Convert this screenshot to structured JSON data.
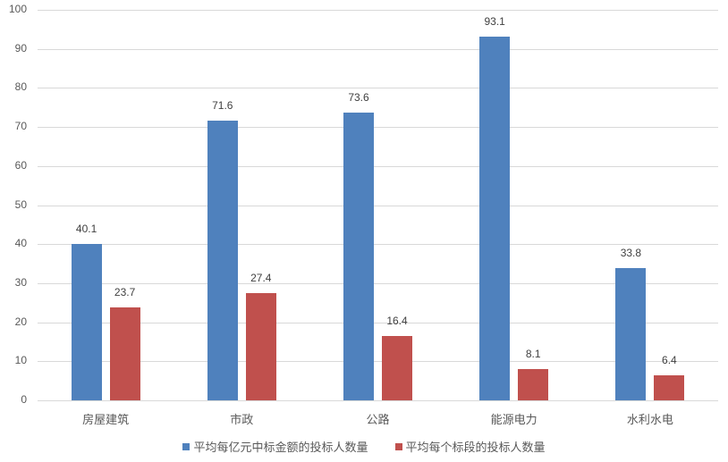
{
  "chart_data": {
    "type": "bar",
    "title": "",
    "xlabel": "",
    "ylabel": "",
    "ylim": [
      0,
      100
    ],
    "yticks": [
      0,
      10,
      20,
      30,
      40,
      50,
      60,
      70,
      80,
      90,
      100
    ],
    "grid": true,
    "legend_position": "bottom",
    "categories": [
      "房屋建筑",
      "市政",
      "公路",
      "能源电力",
      "水利水电"
    ],
    "series": [
      {
        "name": "平均每亿元中标金额的投标人数量",
        "color": "#4f81bd",
        "values": [
          40.1,
          71.6,
          73.6,
          93.1,
          33.8
        ]
      },
      {
        "name": "平均每个标段的投标人数量",
        "color": "#c0504d",
        "values": [
          23.7,
          27.4,
          16.4,
          8.1,
          6.4
        ]
      }
    ]
  }
}
